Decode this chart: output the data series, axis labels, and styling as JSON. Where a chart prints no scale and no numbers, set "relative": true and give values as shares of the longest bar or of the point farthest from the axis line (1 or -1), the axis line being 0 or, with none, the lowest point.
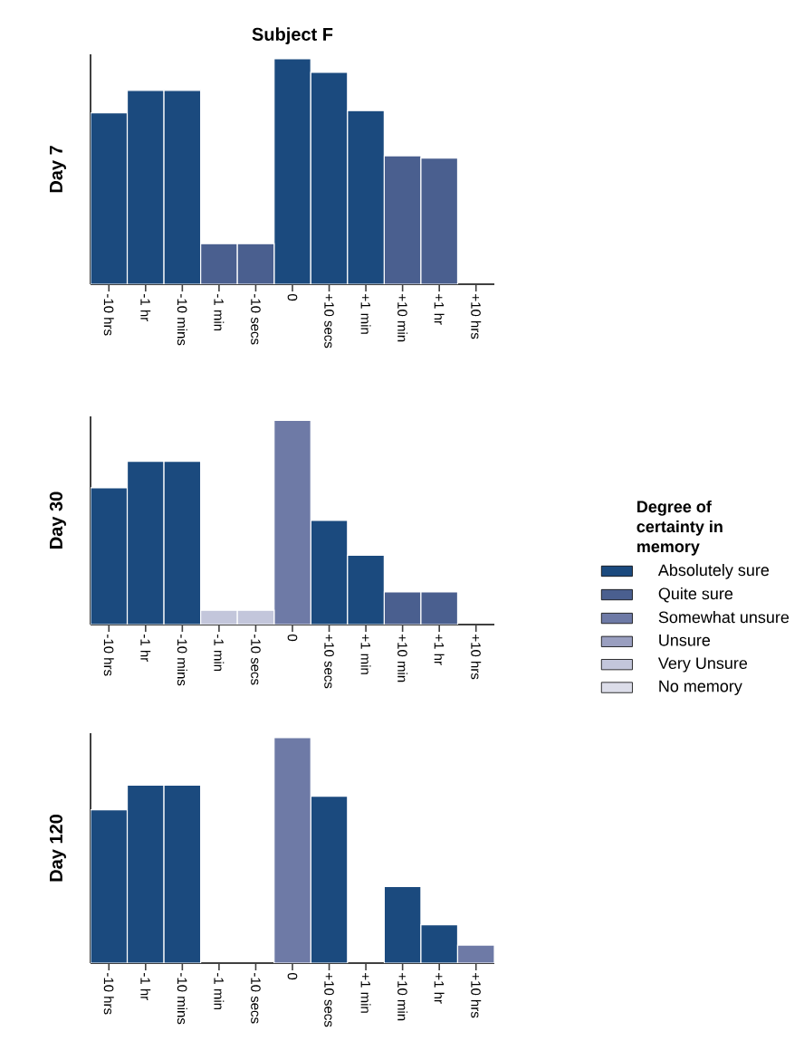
{
  "chart_data": [
    {
      "type": "bar",
      "title": "Subject F",
      "ylabel": "Day 7",
      "relative": true,
      "categories": [
        "-10 hrs",
        "-1 hr",
        "-10 mins",
        "-1 min",
        "-10 secs",
        "0",
        "+10 secs",
        "+1 min",
        "+10 min",
        "+1 hr",
        "+10 hrs"
      ],
      "series": [
        {
          "color": "#1b4a7e",
          "values": [
            0.76,
            0.86,
            0.86,
            null,
            null,
            1,
            0.94,
            0.77,
            null,
            null,
            null
          ]
        },
        {
          "color": "#4a5f8f",
          "values": [
            null,
            null,
            null,
            0.18,
            0.18,
            null,
            null,
            null,
            0.57,
            0.56,
            null
          ]
        }
      ]
    },
    {
      "type": "bar",
      "ylabel": "Day 30",
      "relative": true,
      "legend": "right",
      "legend_title": "Degree of certainty in memory",
      "categories": [
        "-10 hrs",
        "-1 hr",
        "-10 mins",
        "-1 min",
        "-10 secs",
        "0",
        "+10 secs",
        "+1 min",
        "+10 min",
        "+1 hr",
        "+10 hrs"
      ],
      "series": [
        {
          "name": "Absolutely sure",
          "color": "#1b4a7e",
          "values": [
            0.67,
            0.8,
            0.8,
            null,
            null,
            null,
            0.51,
            0.34,
            null,
            null,
            null
          ]
        },
        {
          "name": "Quite sure",
          "color": "#4a5f8f",
          "values": [
            null,
            null,
            null,
            null,
            null,
            null,
            null,
            null,
            0.16,
            0.16,
            null
          ]
        },
        {
          "name": "Somewhat unsure",
          "color": "#6e7aa6",
          "values": [
            null,
            null,
            null,
            null,
            null,
            1,
            null,
            null,
            null,
            null,
            null
          ]
        },
        {
          "name": "Unsure",
          "color": "#9a9fc0",
          "values": [
            null,
            null,
            null,
            null,
            null,
            null,
            null,
            null,
            null,
            null,
            null
          ]
        },
        {
          "name": "Very Unsure",
          "color": "#c3c6db",
          "values": [
            null,
            null,
            null,
            0.07,
            0.07,
            null,
            null,
            null,
            null,
            null,
            null
          ]
        },
        {
          "name": "No memory",
          "color": "#dcdde9",
          "values": [
            null,
            null,
            null,
            null,
            null,
            null,
            null,
            null,
            null,
            null,
            null
          ]
        }
      ]
    },
    {
      "type": "bar",
      "ylabel": "Day 120",
      "relative": true,
      "categories": [
        "-10 hrs",
        "-1 hr",
        "-10 mins",
        "-1 min",
        "-10 secs",
        "0",
        "+10 secs",
        "+1 min",
        "+10 min",
        "+1 hr",
        "+10 hrs"
      ],
      "series": [
        {
          "color": "#1b4a7e",
          "values": [
            0.68,
            0.79,
            0.79,
            null,
            null,
            null,
            0.74,
            null,
            0.34,
            0.17,
            null
          ]
        },
        {
          "color": "#6e7aa6",
          "values": [
            null,
            null,
            null,
            null,
            null,
            1,
            null,
            null,
            null,
            null,
            0.08
          ]
        }
      ]
    }
  ]
}
